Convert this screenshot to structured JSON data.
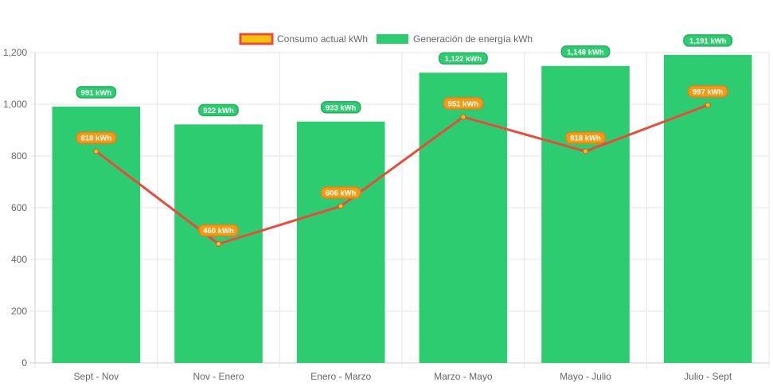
{
  "chart_data": {
    "type": "bar",
    "categories": [
      "Sept - Nov",
      "Nov - Enero",
      "Enero - Marzo",
      "Marzo - Mayo",
      "Mayo - Julio",
      "Julio - Sept"
    ],
    "series": [
      {
        "name": "Generación de energía kWh",
        "type": "bar",
        "values": [
          991,
          922,
          933,
          1122,
          1148,
          1191
        ],
        "labels": [
          "991 kWh",
          "922 kWh",
          "933 kWh",
          "1,122 kWh",
          "1,148 kWh",
          "1,191 kWh"
        ],
        "color": "#2ecc71"
      },
      {
        "name": "Consumo actual kWh",
        "type": "line",
        "values": [
          818,
          460,
          606,
          951,
          818,
          997
        ],
        "labels": [
          "818 kWh",
          "460 kWh",
          "606 kWh",
          "951 kWh",
          "818 kWh",
          "997 kWh"
        ],
        "color": "#e74c3c",
        "fill_color": "#f1c40f"
      }
    ],
    "y_ticks": [
      "0",
      "200",
      "400",
      "600",
      "800",
      "1,000",
      "1,200"
    ],
    "ylim": [
      0,
      1200
    ],
    "grid": true,
    "legend": "top-center",
    "xlabel": "",
    "ylabel": "",
    "title": ""
  }
}
